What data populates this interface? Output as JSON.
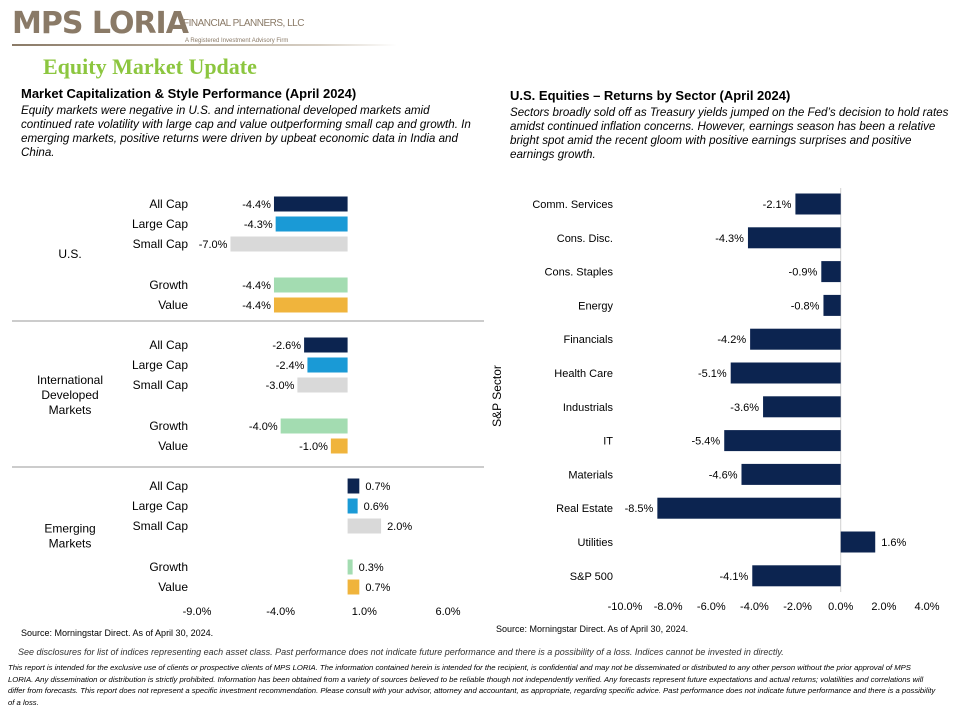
{
  "header": {
    "logo_main": "MPS LORIA",
    "logo_sub": "FINANCIAL PLANNERS, LLC",
    "logo_tag": "A Registered Investment Advisory Firm",
    "page_title": "Equity Market Update"
  },
  "left": {
    "title": "Market Capitalization & Style Performance (April 2024)",
    "description": "Equity markets were  negative in U.S. and international developed markets amid continued rate volatility with large cap and value outperforming  small cap and growth.  In emerging markets, positive returns were driven by upbeat economic data in India and China.",
    "source": "Source: Morningstar Direct. As of April 30, 2024."
  },
  "right": {
    "title": "U.S. Equities – Returns by Sector (April 2024)",
    "description": "Sectors broadly sold off as Treasury yields jumped on the Fed’s decision to hold rates amidst continued inflation concerns. However,  earnings season has been a relative bright spot amid the recent gloom with positive earnings surprises and positive earnings growth.",
    "source": "Source: Morningstar Direct. As of April 30, 2024."
  },
  "disclaimer": {
    "line1": "See disclosures for list of indices representing each asset class. Past performance does not indicate future performance and there is a possibility of a loss. Indices cannot be invested in directly.",
    "body": "This report is intended for the exclusive use of clients or prospective clients of MPS LORIA. The information contained herein is intended for the recipient, is confidential and may not be disseminated or distributed to any other person without the prior approval of MPS LORIA. Any dissemination or distribution is strictly prohibited. Information has been obtained from a variety of sources believed to be reliable though not independently verified. Any forecasts represent future expectations and actual returns; volatilities and correlations will differ from forecasts. This report does not represent a specific investment recommendation. Please consult with your advisor, attorney and accountant, as appropriate, regarding specific advice. Past performance does not indicate future performance and there is a possibility of a loss."
  },
  "colors": {
    "all_cap": "#0c2450",
    "large_cap": "#1a9ad6",
    "small_cap": "#d9d9d9",
    "growth": "#a3dcb1",
    "value": "#f0b43c",
    "sector_bar": "#0c2450",
    "title_green": "#8cc63f",
    "logo": "#8a7a67"
  },
  "chart_data": [
    {
      "type": "bar",
      "orientation": "horizontal",
      "title": "Market Capitalization & Style Performance (April 2024)",
      "xlim": [
        -9.0,
        6.0
      ],
      "xticks": [
        "-9.0%",
        "-4.0%",
        "1.0%",
        "6.0%"
      ],
      "tick_values": [
        -9.0,
        -4.0,
        1.0,
        6.0
      ],
      "groups": [
        {
          "name": "U.S.",
          "bars": [
            {
              "label": "All Cap",
              "value": -4.4,
              "display": "-4.4%",
              "color_key": "all_cap"
            },
            {
              "label": "Large Cap",
              "value": -4.3,
              "display": "-4.3%",
              "color_key": "large_cap"
            },
            {
              "label": "Small Cap",
              "value": -7.0,
              "display": "-7.0%",
              "color_key": "small_cap"
            },
            {
              "label": "Growth",
              "value": -4.4,
              "display": "-4.4%",
              "color_key": "growth"
            },
            {
              "label": "Value",
              "value": -4.4,
              "display": "-4.4%",
              "color_key": "value"
            }
          ]
        },
        {
          "name": "International Developed Markets",
          "name_lines": [
            "International",
            "Developed",
            "Markets"
          ],
          "bars": [
            {
              "label": "All Cap",
              "value": -2.6,
              "display": "-2.6%",
              "color_key": "all_cap"
            },
            {
              "label": "Large Cap",
              "value": -2.4,
              "display": "-2.4%",
              "color_key": "large_cap"
            },
            {
              "label": "Small Cap",
              "value": -3.0,
              "display": "-3.0%",
              "color_key": "small_cap"
            },
            {
              "label": "Growth",
              "value": -4.0,
              "display": "-4.0%",
              "color_key": "growth"
            },
            {
              "label": "Value",
              "value": -1.0,
              "display": "-1.0%",
              "color_key": "value"
            }
          ]
        },
        {
          "name": "Emerging Markets",
          "name_lines": [
            "Emerging",
            "Markets"
          ],
          "bars": [
            {
              "label": "All Cap",
              "value": 0.7,
              "display": "0.7%",
              "color_key": "all_cap"
            },
            {
              "label": "Large Cap",
              "value": 0.6,
              "display": "0.6%",
              "color_key": "large_cap"
            },
            {
              "label": "Small Cap",
              "value": 2.0,
              "display": "2.0%",
              "color_key": "small_cap"
            },
            {
              "label": "Growth",
              "value": 0.3,
              "display": "0.3%",
              "color_key": "growth"
            },
            {
              "label": "Value",
              "value": 0.7,
              "display": "0.7%",
              "color_key": "value"
            }
          ]
        }
      ]
    },
    {
      "type": "bar",
      "orientation": "horizontal",
      "title": "U.S. Equities – Returns by Sector (April 2024)",
      "ylabel": "S&P Sector",
      "xlim": [
        -10.0,
        4.0
      ],
      "xticks": [
        "-10.0%",
        "-8.0%",
        "-6.0%",
        "-4.0%",
        "-2.0%",
        "0.0%",
        "2.0%",
        "4.0%"
      ],
      "tick_values": [
        -10,
        -8,
        -6,
        -4,
        -2,
        0,
        2,
        4
      ],
      "categories": [
        "Comm. Services",
        "Cons. Disc.",
        "Cons. Staples",
        "Energy",
        "Financials",
        "Health Care",
        "Industrials",
        "IT",
        "Materials",
        "Real Estate",
        "Utilities",
        "S&P 500"
      ],
      "values": [
        -2.1,
        -4.3,
        -0.9,
        -0.8,
        -4.2,
        -5.1,
        -3.6,
        -5.4,
        -4.6,
        -8.5,
        1.6,
        -4.1
      ],
      "value_labels": [
        "-2.1%",
        "-4.3%",
        "-0.9%",
        "-0.8%",
        "-4.2%",
        "-5.1%",
        "-3.6%",
        "-5.4%",
        "-4.6%",
        "-8.5%",
        "1.6%",
        "-4.1%"
      ]
    }
  ]
}
